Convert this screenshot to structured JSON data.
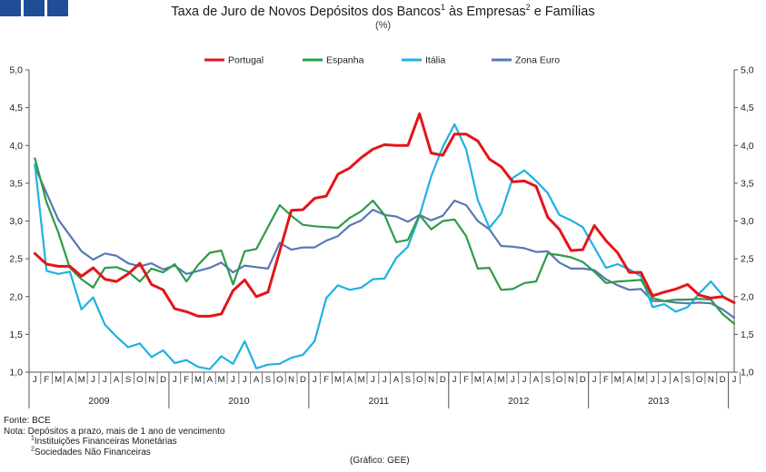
{
  "header": {
    "title_part1": "Taxa de Juro de Novos Depósitos dos Bancos",
    "title_sup1": "1",
    "title_part2": " às Empresas",
    "title_sup2": "2",
    "title_part3": " e Famílias",
    "subtitle": "(%)",
    "brand_color": "#1f4e96"
  },
  "notes": {
    "source": "Fonte: BCE",
    "note": "Nota: Depósitos a prazo, mais de 1 ano de vencimento",
    "footnote1_mark": "1",
    "footnote1_text": "Instituições Financeiras Monetárias",
    "footnote2_mark": "2",
    "footnote2_text": "Sociedades Não Financeiras",
    "credit": "(Gráfico: GEE)"
  },
  "chart_data": {
    "type": "line",
    "title": "Taxa de Juro de Novos Depósitos dos Bancos¹ às Empresas² e Famílias",
    "subtitle": "(%)",
    "ylim": [
      1.0,
      5.0
    ],
    "yticks": [
      "1,0",
      "1,5",
      "2,0",
      "2,5",
      "3,0",
      "3,5",
      "4,0",
      "4,5",
      "5,0"
    ],
    "month_labels": [
      "J",
      "F",
      "M",
      "A",
      "M",
      "J",
      "J",
      "A",
      "S",
      "O",
      "N",
      "D"
    ],
    "years": [
      "2009",
      "2010",
      "2011",
      "2012",
      "2013"
    ],
    "grid": false,
    "legend_position": "top",
    "series": [
      {
        "name": "Portugal",
        "color": "#e3151a",
        "values": [
          2.57,
          2.43,
          2.4,
          2.4,
          2.27,
          2.38,
          2.23,
          2.2,
          2.3,
          2.44,
          2.16,
          2.09,
          1.84,
          1.8,
          1.74,
          1.74,
          1.77,
          2.08,
          2.22,
          2.0,
          2.06,
          2.6,
          3.14,
          3.15,
          3.3,
          3.33,
          3.62,
          3.7,
          3.84,
          3.95,
          4.01,
          4.0,
          4.0,
          4.42,
          3.9,
          3.87,
          4.15,
          4.15,
          4.06,
          3.82,
          3.72,
          3.52,
          3.53,
          3.46,
          3.05,
          2.89,
          2.61,
          2.62,
          2.94,
          2.74,
          2.58,
          2.32,
          2.32,
          2.01,
          2.06,
          2.1,
          2.16,
          2.02,
          1.98,
          2.0,
          1.92
        ]
      },
      {
        "name": "Espanha",
        "color": "#2e9b49",
        "values": [
          3.83,
          3.25,
          2.85,
          2.38,
          2.23,
          2.12,
          2.38,
          2.39,
          2.33,
          2.2,
          2.37,
          2.32,
          2.43,
          2.2,
          2.42,
          2.58,
          2.61,
          2.16,
          2.6,
          2.63,
          2.92,
          3.21,
          3.07,
          2.95,
          2.93,
          2.92,
          2.91,
          3.04,
          3.13,
          3.27,
          3.08,
          2.72,
          2.75,
          3.08,
          2.89,
          3.0,
          3.02,
          2.8,
          2.37,
          2.38,
          2.09,
          2.1,
          2.18,
          2.2,
          2.57,
          2.55,
          2.52,
          2.46,
          2.33,
          2.18,
          2.2,
          2.21,
          2.22,
          1.98,
          1.94,
          1.96,
          1.96,
          1.97,
          1.96,
          1.77,
          1.64
        ]
      },
      {
        "name": "Itália",
        "color": "#1fb2df",
        "values": [
          3.75,
          2.34,
          2.3,
          2.33,
          1.83,
          1.99,
          1.63,
          1.47,
          1.33,
          1.38,
          1.2,
          1.29,
          1.12,
          1.16,
          1.07,
          1.04,
          1.21,
          1.11,
          1.41,
          1.05,
          1.1,
          1.11,
          1.19,
          1.23,
          1.41,
          1.98,
          2.15,
          2.09,
          2.12,
          2.23,
          2.24,
          2.51,
          2.66,
          3.07,
          3.59,
          3.98,
          4.28,
          3.95,
          3.28,
          2.91,
          3.1,
          3.57,
          3.67,
          3.53,
          3.37,
          3.08,
          3.01,
          2.92,
          2.65,
          2.38,
          2.43,
          2.36,
          2.27,
          1.86,
          1.9,
          1.8,
          1.86,
          2.04,
          2.2,
          2.02
        ]
      },
      {
        "name": "Zona Euro",
        "color": "#5878b5",
        "values": [
          3.72,
          3.37,
          3.02,
          2.81,
          2.6,
          2.49,
          2.57,
          2.54,
          2.44,
          2.4,
          2.44,
          2.36,
          2.41,
          2.3,
          2.34,
          2.38,
          2.45,
          2.32,
          2.41,
          2.39,
          2.37,
          2.71,
          2.62,
          2.65,
          2.65,
          2.74,
          2.8,
          2.94,
          3.01,
          3.15,
          3.08,
          3.06,
          2.99,
          3.08,
          3.01,
          3.07,
          3.27,
          3.21,
          3.0,
          2.89,
          2.67,
          2.66,
          2.64,
          2.59,
          2.6,
          2.45,
          2.37,
          2.37,
          2.35,
          2.23,
          2.15,
          2.09,
          2.1,
          1.94,
          1.94,
          1.92,
          1.91,
          1.92,
          1.91,
          1.83,
          1.72
        ]
      }
    ]
  }
}
